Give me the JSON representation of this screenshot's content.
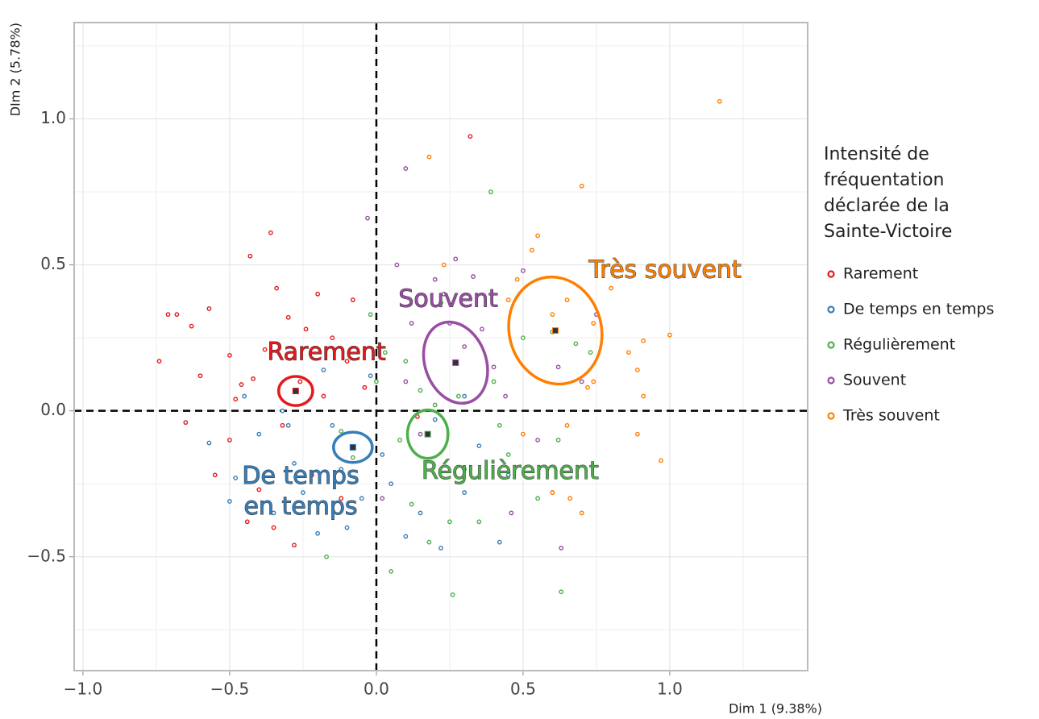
{
  "chart_data": {
    "type": "scatter",
    "x_label": "Dim 1 (9.38%)",
    "y_label": "DIm 2 (5.78%)",
    "legend_title": [
      "Intensité de",
      "fréquentation",
      "déclarée de la",
      "Sainte-Victoire"
    ],
    "legend": "right",
    "xlim": [
      -1.03,
      1.47
    ],
    "ylim": [
      -0.89,
      1.33
    ],
    "xticks": [
      {
        "value": -1.0,
        "label": "−1.0"
      },
      {
        "value": -0.5,
        "label": "−0.5"
      },
      {
        "value": 0,
        "label": "0.0"
      },
      0.5,
      {
        "value": 1.0,
        "label": "1.0"
      }
    ],
    "yticks": [
      {
        "value": -0.5,
        "label": "−0.5"
      },
      {
        "value": 0,
        "label": "0.0"
      },
      0.5,
      {
        "value": 1.0,
        "label": "1.0"
      }
    ],
    "x_minor_grid": [
      -0.75,
      -0.25,
      0.25,
      0.75,
      1.25
    ],
    "y_minor_grid": [
      -0.75,
      -0.25,
      0.25,
      0.75,
      1.25
    ],
    "grid": true,
    "hline": 0,
    "vline": 0,
    "series": [
      {
        "name": "Rarement",
        "color": "#e41a1c",
        "x": [
          -0.74,
          -0.71,
          -0.68,
          -0.65,
          -0.63,
          -0.6,
          -0.57,
          -0.55,
          -0.5,
          -0.5,
          -0.48,
          -0.46,
          -0.44,
          -0.43,
          -0.42,
          -0.4,
          -0.38,
          -0.36,
          -0.34,
          -0.32,
          -0.3,
          -0.28,
          -0.26,
          -0.24,
          -0.22,
          -0.2,
          -0.18,
          -0.15,
          -0.12,
          -0.1,
          -0.08,
          -0.04,
          0.32,
          0.14,
          -0.35
        ],
        "values": [
          0.17,
          0.33,
          0.33,
          -0.04,
          0.29,
          0.12,
          0.35,
          -0.22,
          0.19,
          -0.1,
          0.04,
          0.09,
          -0.38,
          0.53,
          0.11,
          -0.27,
          0.21,
          0.61,
          0.42,
          -0.05,
          0.32,
          -0.46,
          0.1,
          0.28,
          -0.22,
          0.4,
          0.05,
          0.25,
          -0.3,
          0.17,
          0.38,
          0.08,
          0.94,
          -0.02,
          -0.4
        ],
        "centroid": [
          -0.275,
          0.068
        ],
        "ellipse": {
          "rx": 0.058,
          "ry": 0.05,
          "angle": 0
        }
      },
      {
        "name": "De temps en temps",
        "color": "#377eb8",
        "x": [
          -0.57,
          -0.5,
          -0.48,
          -0.45,
          -0.4,
          -0.35,
          -0.32,
          -0.28,
          -0.25,
          -0.2,
          -0.18,
          -0.15,
          -0.12,
          -0.1,
          -0.05,
          -0.02,
          0.02,
          0.05,
          0.1,
          0.15,
          0.2,
          0.22,
          0.3,
          0.35,
          0.42,
          0.45,
          0.3,
          -0.3
        ],
        "values": [
          -0.11,
          -0.31,
          -0.23,
          0.05,
          -0.08,
          -0.35,
          0.0,
          -0.18,
          -0.28,
          -0.42,
          0.14,
          -0.05,
          -0.2,
          -0.4,
          -0.3,
          0.12,
          -0.15,
          -0.25,
          -0.43,
          -0.35,
          -0.03,
          -0.47,
          -0.28,
          -0.12,
          -0.45,
          -0.22,
          0.05,
          -0.05
        ],
        "centroid": [
          -0.08,
          -0.125
        ],
        "ellipse": {
          "rx": 0.066,
          "ry": 0.052,
          "angle": 0
        }
      },
      {
        "name": "Régulièrement",
        "color": "#4daf4a",
        "x": [
          -0.17,
          -0.12,
          -0.08,
          -0.02,
          0.0,
          0.03,
          0.05,
          0.08,
          0.1,
          0.12,
          0.15,
          0.18,
          0.2,
          0.22,
          0.25,
          0.26,
          0.28,
          0.3,
          0.35,
          0.39,
          0.4,
          0.45,
          0.5,
          0.55,
          0.6,
          0.63,
          0.68,
          0.73,
          0.62,
          0.42
        ],
        "values": [
          -0.5,
          -0.07,
          -0.16,
          0.33,
          0.1,
          0.2,
          -0.55,
          -0.1,
          0.17,
          -0.32,
          0.07,
          -0.45,
          0.02,
          0.37,
          -0.38,
          -0.63,
          0.05,
          -0.2,
          -0.38,
          0.75,
          0.1,
          -0.15,
          0.25,
          -0.3,
          0.27,
          -0.62,
          0.23,
          0.2,
          -0.1,
          -0.05
        ],
        "centroid": [
          0.175,
          -0.08
        ],
        "ellipse": {
          "rx": 0.069,
          "ry": 0.083,
          "angle": 0
        }
      },
      {
        "name": "Souvent",
        "color": "#984ea3",
        "x": [
          -0.03,
          0.07,
          0.1,
          0.12,
          0.15,
          0.1,
          0.2,
          0.23,
          0.25,
          0.27,
          0.3,
          0.33,
          0.36,
          0.4,
          0.44,
          0.46,
          0.5,
          0.55,
          0.6,
          0.63,
          0.62,
          0.7,
          0.75,
          0.02
        ],
        "values": [
          0.66,
          0.5,
          0.1,
          0.3,
          -0.08,
          0.83,
          0.45,
          0.4,
          0.3,
          0.52,
          0.22,
          0.46,
          0.28,
          0.15,
          0.05,
          -0.35,
          0.48,
          -0.1,
          -0.28,
          -0.47,
          0.15,
          0.1,
          0.33,
          -0.3
        ],
        "centroid": [
          0.27,
          0.165
        ],
        "ellipse": {
          "rx": 0.104,
          "ry": 0.143,
          "angle": -20
        }
      },
      {
        "name": "Très souvent",
        "color": "#ff7f00",
        "x": [
          0.18,
          0.23,
          0.45,
          0.48,
          0.5,
          0.53,
          0.55,
          0.6,
          0.65,
          0.7,
          0.72,
          0.74,
          0.65,
          0.7,
          0.74,
          0.86,
          0.89,
          0.89,
          0.91,
          0.91,
          0.97,
          1.0,
          1.17,
          0.6,
          0.66,
          0.8
        ],
        "values": [
          0.87,
          0.5,
          0.38,
          0.45,
          -0.08,
          0.55,
          0.6,
          0.33,
          0.38,
          0.77,
          0.08,
          0.3,
          -0.05,
          -0.35,
          0.1,
          0.2,
          0.14,
          -0.08,
          0.24,
          0.05,
          -0.17,
          0.26,
          1.06,
          -0.28,
          -0.3,
          0.42
        ],
        "centroid": [
          0.61,
          0.275
        ],
        "ellipse": {
          "rx": 0.157,
          "ry": 0.185,
          "angle": -15
        }
      }
    ],
    "annotations": [
      {
        "lines": [
          "Rarement"
        ],
        "x": -0.17,
        "y": 0.198,
        "color": "#e41a1c"
      },
      {
        "lines": [
          "De temps",
          "en temps"
        ],
        "x": -0.258,
        "y": -0.226,
        "color": "#377eb8"
      },
      {
        "lines": [
          "Régulièrement"
        ],
        "x": 0.456,
        "y": -0.209,
        "color": "#4daf4a"
      },
      {
        "lines": [
          "Souvent"
        ],
        "x": 0.245,
        "y": 0.38,
        "color": "#984ea3"
      },
      {
        "lines": [
          "Très souvent"
        ],
        "x": 0.984,
        "y": 0.479,
        "color": "#ff7f00"
      }
    ]
  }
}
